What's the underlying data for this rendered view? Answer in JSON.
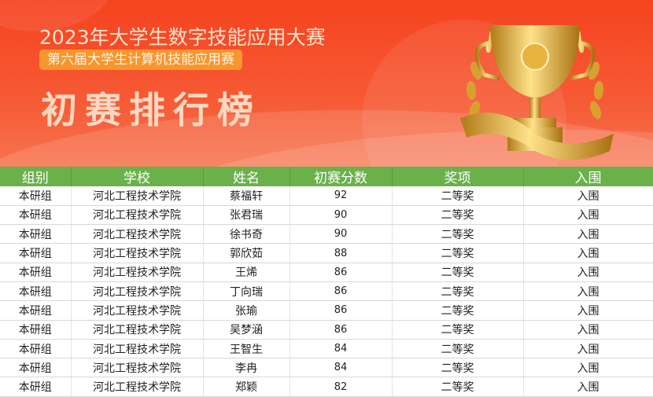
{
  "banner": {
    "title": "2023年大学生数字技能应用大赛",
    "subtitle": "第六届大学生计算机技能应用赛",
    "heading": "初赛排行榜",
    "colors": {
      "background": "#f5431f",
      "badge": "#f7962d",
      "header_green": "#6ab14a"
    },
    "icon": "trophy-icon"
  },
  "table": {
    "headers": [
      "组别",
      "学校",
      "姓名",
      "初赛分数",
      "奖项",
      "入围"
    ],
    "rows": [
      [
        "本研组",
        "河北工程技术学院",
        "蔡福轩",
        "92",
        "二等奖",
        "入围"
      ],
      [
        "本研组",
        "河北工程技术学院",
        "张君瑞",
        "90",
        "二等奖",
        "入围"
      ],
      [
        "本研组",
        "河北工程技术学院",
        "徐书奇",
        "90",
        "二等奖",
        "入围"
      ],
      [
        "本研组",
        "河北工程技术学院",
        "郭欣茹",
        "88",
        "二等奖",
        "入围"
      ],
      [
        "本研组",
        "河北工程技术学院",
        "王烯",
        "86",
        "二等奖",
        "入围"
      ],
      [
        "本研组",
        "河北工程技术学院",
        "丁向瑞",
        "86",
        "二等奖",
        "入围"
      ],
      [
        "本研组",
        "河北工程技术学院",
        "张瑜",
        "86",
        "二等奖",
        "入围"
      ],
      [
        "本研组",
        "河北工程技术学院",
        "吴梦涵",
        "86",
        "二等奖",
        "入围"
      ],
      [
        "本研组",
        "河北工程技术学院",
        "王智生",
        "84",
        "二等奖",
        "入围"
      ],
      [
        "本研组",
        "河北工程技术学院",
        "李冉",
        "84",
        "二等奖",
        "入围"
      ],
      [
        "本研组",
        "河北工程技术学院",
        "郑颖",
        "82",
        "二等奖",
        "入围"
      ]
    ]
  }
}
